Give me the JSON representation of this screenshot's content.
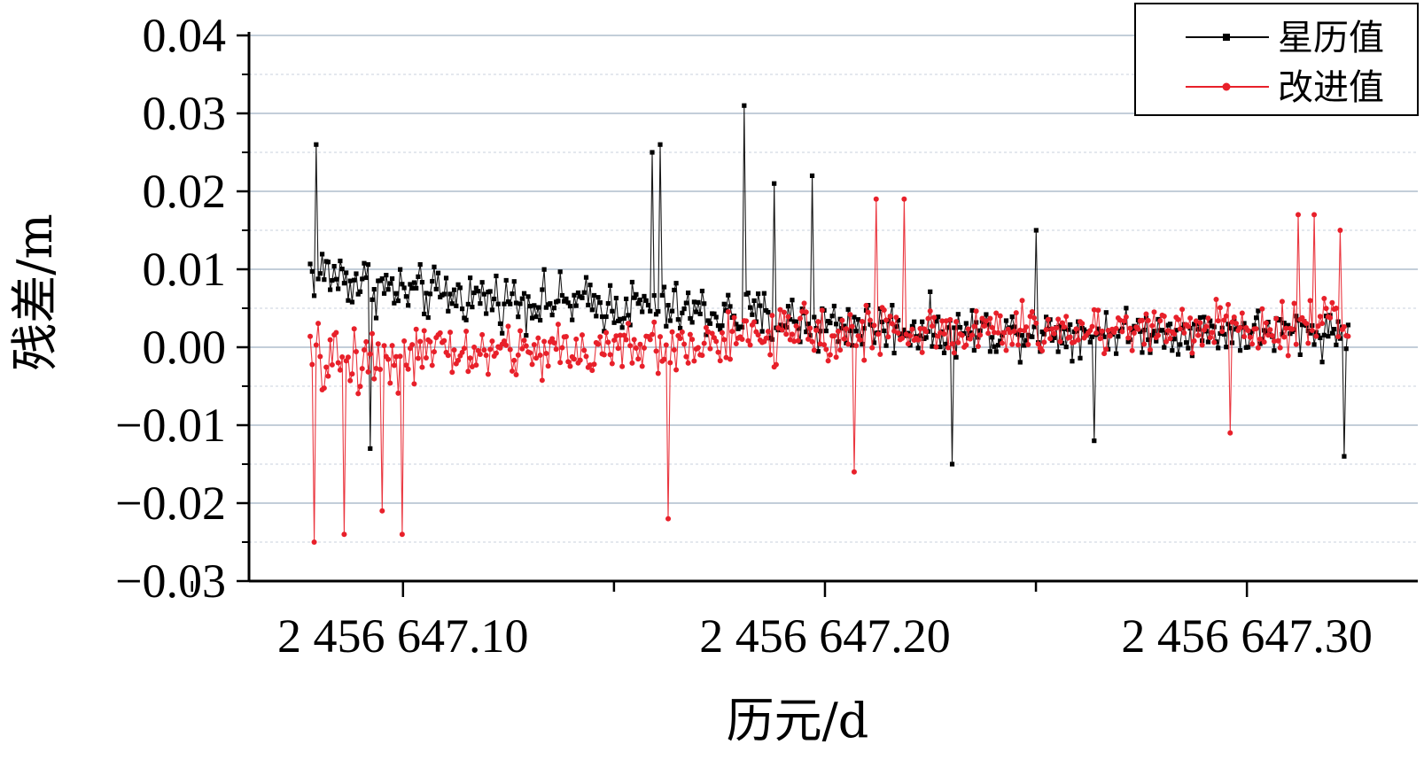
{
  "chart_data": {
    "type": "line",
    "title": "",
    "xlabel": "历元/d",
    "ylabel": "残差/m",
    "xlim": [
      2456647.0635,
      2456647.3405
    ],
    "ylim": [
      -0.03,
      0.04
    ],
    "x_range_data": [
      2456647.078,
      2456647.324
    ],
    "x_ticks": [
      2456647.1,
      2456647.2,
      2456647.3
    ],
    "x_tick_labels": [
      "2 456 647.10",
      "2 456 647.20",
      "2 456 647.30"
    ],
    "y_ticks": [
      -0.03,
      -0.02,
      -0.01,
      0.0,
      0.01,
      0.02,
      0.03,
      0.04
    ],
    "y_tick_labels": [
      "−0.03",
      "−0.02",
      "−0.01",
      "0.00",
      "0.01",
      "0.02",
      "0.03",
      "0.04"
    ],
    "grid": true,
    "legend_position": "top-right",
    "n_points": 520,
    "series": [
      {
        "name": "星历值",
        "color": "#000000",
        "marker": "square",
        "envelope": [
          {
            "x": 2456647.078,
            "mean": 0.01,
            "spread": 0.006
          },
          {
            "x": 2456647.1,
            "mean": 0.007,
            "spread": 0.005
          },
          {
            "x": 2456647.13,
            "mean": 0.006,
            "spread": 0.005
          },
          {
            "x": 2456647.16,
            "mean": 0.005,
            "spread": 0.005
          },
          {
            "x": 2456647.2,
            "mean": 0.003,
            "spread": 0.0055
          },
          {
            "x": 2456647.24,
            "mean": 0.002,
            "spread": 0.0045
          },
          {
            "x": 2456647.28,
            "mean": 0.002,
            "spread": 0.004
          },
          {
            "x": 2456647.324,
            "mean": 0.002,
            "spread": 0.0045
          }
        ],
        "peaks": [
          {
            "x": 2456647.0795,
            "y": 0.026
          },
          {
            "x": 2456647.159,
            "y": 0.025
          },
          {
            "x": 2456647.161,
            "y": 0.026
          },
          {
            "x": 2456647.181,
            "y": 0.031
          },
          {
            "x": 2456647.188,
            "y": 0.021
          },
          {
            "x": 2456647.197,
            "y": 0.022
          },
          {
            "x": 2456647.25,
            "y": 0.015
          },
          {
            "x": 2456647.092,
            "y": -0.013
          },
          {
            "x": 2456647.23,
            "y": -0.015
          },
          {
            "x": 2456647.323,
            "y": -0.014
          },
          {
            "x": 2456647.264,
            "y": -0.012
          }
        ]
      },
      {
        "name": "改进值",
        "color": "#e8202a",
        "marker": "circle",
        "envelope": [
          {
            "x": 2456647.078,
            "mean": -0.002,
            "spread": 0.007
          },
          {
            "x": 2456647.1,
            "mean": -0.001,
            "spread": 0.006
          },
          {
            "x": 2456647.13,
            "mean": -0.0005,
            "spread": 0.005
          },
          {
            "x": 2456647.16,
            "mean": 0.0,
            "spread": 0.005
          },
          {
            "x": 2456647.2,
            "mean": 0.002,
            "spread": 0.005
          },
          {
            "x": 2456647.24,
            "mean": 0.002,
            "spread": 0.0045
          },
          {
            "x": 2456647.28,
            "mean": 0.0025,
            "spread": 0.0045
          },
          {
            "x": 2456647.324,
            "mean": 0.003,
            "spread": 0.005
          }
        ],
        "peaks": [
          {
            "x": 2456647.079,
            "y": -0.025
          },
          {
            "x": 2456647.086,
            "y": -0.024
          },
          {
            "x": 2456647.1,
            "y": -0.024
          },
          {
            "x": 2456647.163,
            "y": -0.022
          },
          {
            "x": 2456647.095,
            "y": -0.021
          },
          {
            "x": 2456647.219,
            "y": 0.019
          },
          {
            "x": 2456647.212,
            "y": 0.019
          },
          {
            "x": 2456647.207,
            "y": -0.016
          },
          {
            "x": 2456647.312,
            "y": 0.017
          },
          {
            "x": 2456647.316,
            "y": 0.017
          },
          {
            "x": 2456647.322,
            "y": 0.015
          },
          {
            "x": 2456647.296,
            "y": -0.011
          }
        ]
      }
    ]
  }
}
